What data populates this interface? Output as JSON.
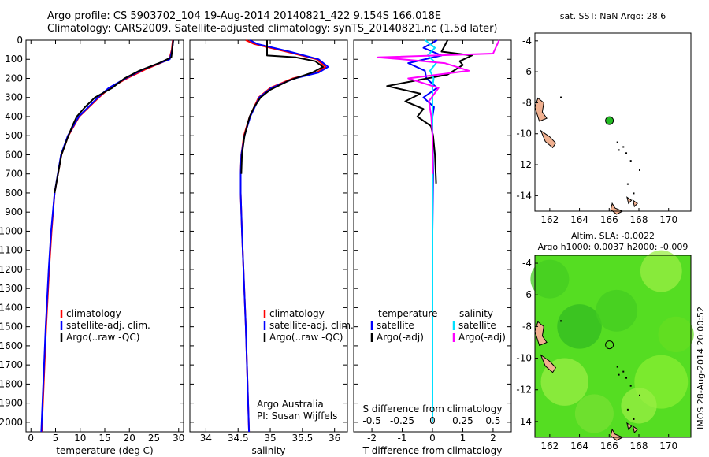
{
  "header": {
    "line1": "Argo profile: CS 5903702_104 19-Aug-2014 20140821_422 9.154S 166.018E",
    "line2": "Climatology: CARS2009. Satellite-adjusted climatology: synTS_20140821.nc (1.5d later)"
  },
  "sidebar_stamp": "IMOS 28-Aug-2014 20:00:52",
  "colors": {
    "climatology": "#ff0000",
    "satellite": "#0000ff",
    "argo": "#000000",
    "sat_salinity": "#00e0ff",
    "argo_salinity": "#ff00ff",
    "land": "#f0b090",
    "float_marker": "#22bb22"
  },
  "chart_data": [
    {
      "type": "line",
      "id": "temperature",
      "xlabel": "temperature (deg C)",
      "ylabel": "",
      "xlim": [
        -1,
        31
      ],
      "ylim": [
        2050,
        0
      ],
      "xticks": [
        0,
        5,
        10,
        15,
        20,
        25,
        30
      ],
      "yticks": [
        0,
        100,
        200,
        300,
        400,
        500,
        600,
        700,
        800,
        900,
        1000,
        1100,
        1200,
        1300,
        1400,
        1500,
        1600,
        1700,
        1800,
        1900,
        2000
      ],
      "legend": [
        "climatology",
        "satellite-adj. clim.",
        "Argo(..raw -QC)"
      ],
      "legend_position": "lower-center",
      "series": [
        {
          "name": "climatology",
          "color_key": "climatology",
          "depth": [
            0,
            50,
            100,
            150,
            200,
            250,
            300,
            400,
            500,
            600,
            800,
            1000,
            1200,
            1500,
            1800,
            2050
          ],
          "values": [
            28.8,
            28.6,
            28.1,
            23.5,
            19.5,
            16.0,
            13.8,
            9.8,
            7.6,
            6.2,
            4.8,
            4.2,
            3.7,
            3.1,
            2.6,
            2.2
          ]
        },
        {
          "name": "satellite-adj. clim.",
          "color_key": "satellite",
          "depth": [
            0,
            50,
            100,
            150,
            200,
            250,
            300,
            400,
            500,
            600,
            800,
            1000,
            1200,
            1500,
            1800,
            2050
          ],
          "values": [
            28.9,
            28.7,
            28.2,
            23.0,
            19.2,
            15.8,
            13.6,
            9.7,
            7.5,
            6.1,
            4.8,
            4.1,
            3.6,
            3.0,
            2.5,
            2.1
          ]
        },
        {
          "name": "Argo(..raw -QC)",
          "color_key": "argo",
          "depth": [
            0,
            50,
            90,
            120,
            160,
            200,
            250,
            300,
            350,
            400,
            450,
            500,
            600,
            800
          ],
          "values": [
            28.9,
            28.7,
            28.5,
            26.0,
            22.0,
            19.0,
            16.5,
            13.0,
            11.0,
            9.3,
            8.4,
            7.6,
            6.2,
            4.8
          ]
        }
      ]
    },
    {
      "type": "line",
      "id": "salinity",
      "xlabel": "salinity",
      "xlim": [
        33.75,
        36.2
      ],
      "ylim": [
        2050,
        0
      ],
      "xticks": [
        34,
        34.5,
        35,
        35.5,
        36
      ],
      "legend": [
        "climatology",
        "satellite-adj. clim.",
        "Argo(..raw -QC)"
      ],
      "legend_position": "lower-right",
      "annotation": [
        "Argo Australia",
        "PI: Susan Wijffels"
      ],
      "series": [
        {
          "name": "climatology",
          "color_key": "climatology",
          "depth": [
            0,
            20,
            60,
            100,
            140,
            170,
            200,
            250,
            300,
            400,
            500,
            600,
            700,
            800,
            1000,
            1500,
            2050
          ],
          "values": [
            34.62,
            34.75,
            35.25,
            35.72,
            35.86,
            35.72,
            35.35,
            35.0,
            34.82,
            34.68,
            34.59,
            34.55,
            34.54,
            34.54,
            34.56,
            34.62,
            34.67
          ]
        },
        {
          "name": "satellite-adj. clim.",
          "color_key": "satellite",
          "depth": [
            0,
            20,
            60,
            100,
            140,
            170,
            200,
            250,
            300,
            400,
            500,
            600,
            700,
            800,
            1000,
            1500,
            2050
          ],
          "values": [
            34.68,
            34.8,
            35.3,
            35.75,
            35.9,
            35.75,
            35.38,
            35.02,
            34.83,
            34.69,
            34.6,
            34.55,
            34.54,
            34.54,
            34.56,
            34.62,
            34.67
          ]
        },
        {
          "name": "Argo(..raw -QC)",
          "color_key": "argo",
          "depth": [
            0,
            80,
            90,
            110,
            140,
            170,
            210,
            260,
            300,
            350,
            400,
            500,
            600,
            700
          ],
          "values": [
            34.95,
            34.95,
            35.4,
            35.7,
            35.82,
            35.65,
            35.3,
            35.0,
            34.85,
            34.75,
            34.68,
            34.6,
            34.56,
            34.55
          ]
        }
      ]
    },
    {
      "type": "line",
      "id": "differences",
      "xlabel": "T difference from climatology",
      "xlabel_top": "S difference from climatology",
      "xlim": [
        -2.6,
        2.6
      ],
      "ylim": [
        2050,
        0
      ],
      "xticks_T": [
        -2,
        -1,
        0,
        1,
        2
      ],
      "xticks_S": [
        -0.5,
        -0.25,
        0,
        0.25,
        0.5
      ],
      "xticks_S_labels": [
        "-0.5",
        "-0.25",
        "0",
        "0.25",
        "0.5"
      ],
      "legend_temperature": {
        "title": "temperature",
        "items": [
          "satellite",
          "Argo(-adj)"
        ]
      },
      "legend_salinity": {
        "title": "salinity",
        "items": [
          "satellite",
          "Argo(-adj)"
        ]
      },
      "series": [
        {
          "name": "temperature satellite",
          "color_key": "satellite",
          "scale": "T",
          "depth": [
            0,
            40,
            80,
            120,
            160,
            200,
            250,
            300,
            350,
            400,
            500,
            700,
            1000,
            1500,
            2000
          ],
          "values": [
            0.15,
            -0.3,
            0.3,
            -0.8,
            -0.25,
            -0.2,
            0.15,
            -0.3,
            0.05,
            0.0,
            0.0,
            0.02,
            0.0,
            0.0,
            0.0
          ]
        },
        {
          "name": "temperature Argo(-adj)",
          "color_key": "argo",
          "scale": "T",
          "depth": [
            0,
            60,
            80,
            110,
            130,
            180,
            240,
            280,
            320,
            360,
            400,
            450,
            500,
            600,
            750
          ],
          "values": [
            0.5,
            0.3,
            1.3,
            0.9,
            1.0,
            0.5,
            -1.5,
            -0.4,
            -0.9,
            -0.3,
            -0.5,
            -0.05,
            0.02,
            0.08,
            0.12
          ]
        },
        {
          "name": "salinity satellite",
          "color_key": "sat_salinity",
          "scale": "S",
          "depth": [
            0,
            40,
            80,
            120,
            160,
            200,
            250,
            300,
            400,
            600,
            900,
            1500,
            2000
          ],
          "values": [
            -0.06,
            0.02,
            -0.04,
            0.03,
            -0.02,
            0.01,
            0.0,
            0.0,
            0.0,
            0.0,
            0.0,
            0.0,
            0.0
          ]
        },
        {
          "name": "salinity Argo(-adj)",
          "color_key": "argo_salinity",
          "scale": "S",
          "depth": [
            0,
            70,
            90,
            100,
            120,
            160,
            200,
            250,
            320,
            400,
            500,
            700
          ],
          "values": [
            0.55,
            0.5,
            -0.45,
            -0.25,
            0.1,
            0.3,
            -0.2,
            0.05,
            -0.03,
            -0.01,
            0.0,
            0.0
          ]
        }
      ]
    },
    {
      "type": "scatter",
      "id": "sst-map",
      "title": "sat. SST: NaN Argo: 28.6",
      "xlim": [
        161,
        171.5
      ],
      "ylim": [
        -15,
        -3.5
      ],
      "xticks": [
        162,
        164,
        166,
        168,
        170
      ],
      "yticks": [
        -4,
        -6,
        -8,
        -10,
        -12,
        -14
      ],
      "float_position": {
        "lon": 166.018,
        "lat": -9.154
      }
    },
    {
      "type": "heatmap",
      "id": "sla-map",
      "title_line1": "Altim. SLA: -0.0022",
      "title_line2": "Argo h1000: 0.0037 h2000: -0.009",
      "xlim": [
        161,
        171.5
      ],
      "ylim": [
        -15,
        -3.5
      ],
      "xticks": [
        162,
        164,
        166,
        168,
        170
      ],
      "yticks": [
        -4,
        -6,
        -8,
        -10,
        -12,
        -14
      ],
      "float_position": {
        "lon": 166.018,
        "lat": -9.154
      }
    }
  ]
}
